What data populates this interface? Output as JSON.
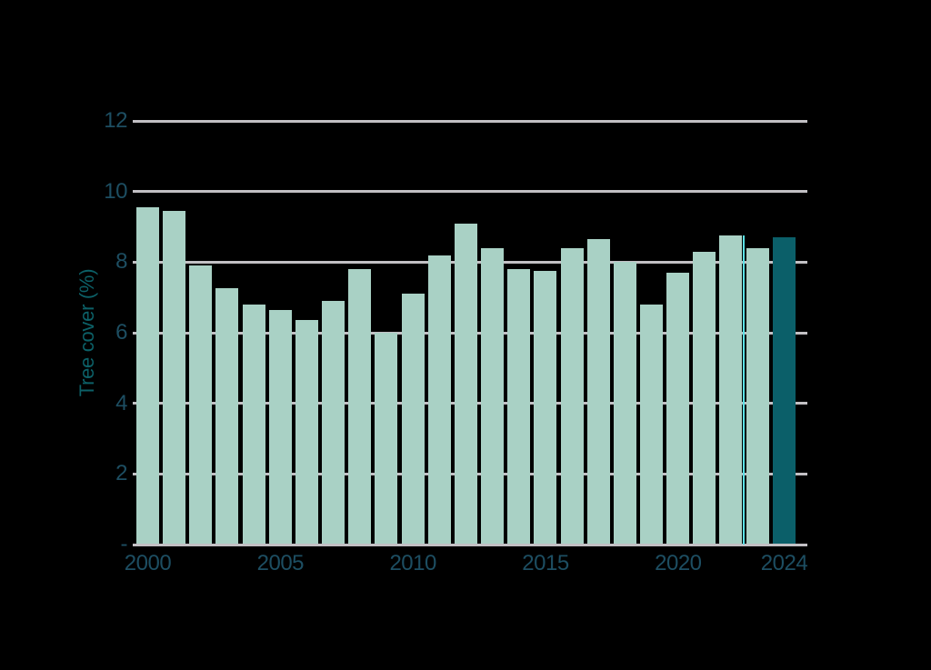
{
  "page": {
    "background_color": "#000000"
  },
  "chart_data": {
    "type": "bar",
    "title": "",
    "xlabel": "",
    "ylabel": "Tree cover (%)",
    "ylim": [
      0,
      12
    ],
    "grid": "horizontal-behind-bars",
    "legend": "none",
    "categories": [
      2000,
      2001,
      2002,
      2003,
      2004,
      2005,
      2006,
      2007,
      2008,
      2009,
      2010,
      2011,
      2012,
      2013,
      2014,
      2015,
      2016,
      2017,
      2018,
      2019,
      2020,
      2021,
      2022,
      2023,
      2024
    ],
    "values": [
      9.55,
      9.45,
      7.9,
      7.25,
      6.8,
      6.65,
      6.35,
      6.9,
      7.8,
      6.0,
      7.1,
      8.2,
      9.1,
      8.4,
      7.8,
      7.75,
      8.4,
      8.65,
      8.0,
      6.8,
      7.7,
      8.3,
      8.75,
      8.4,
      8.7
    ],
    "highlight_category": 2024,
    "y_ticks": [
      {
        "value": 12,
        "label": "12"
      },
      {
        "value": 10,
        "label": "10"
      },
      {
        "value": 8,
        "label": "8"
      },
      {
        "value": 6,
        "label": "6"
      },
      {
        "value": 4,
        "label": "4"
      },
      {
        "value": 2,
        "label": "2"
      },
      {
        "value": 0,
        "label": "-"
      }
    ],
    "x_ticks": [
      {
        "year": 2000,
        "label": "2000"
      },
      {
        "year": 2005,
        "label": "2005"
      },
      {
        "year": 2010,
        "label": "2010"
      },
      {
        "year": 2015,
        "label": "2015"
      },
      {
        "year": 2020,
        "label": "2020"
      },
      {
        "year": 2024,
        "label": "2024"
      }
    ],
    "cursor_artifact": {
      "after_category": 2022,
      "color": "#59e0e5"
    },
    "colors": {
      "bar": "#a9d1c5",
      "bar_highlight": "#0b5f69",
      "gridline": "#c2c0c4",
      "tick_label": "#1d4e62",
      "axis_title": "#0c6067",
      "background": "#000000"
    }
  }
}
